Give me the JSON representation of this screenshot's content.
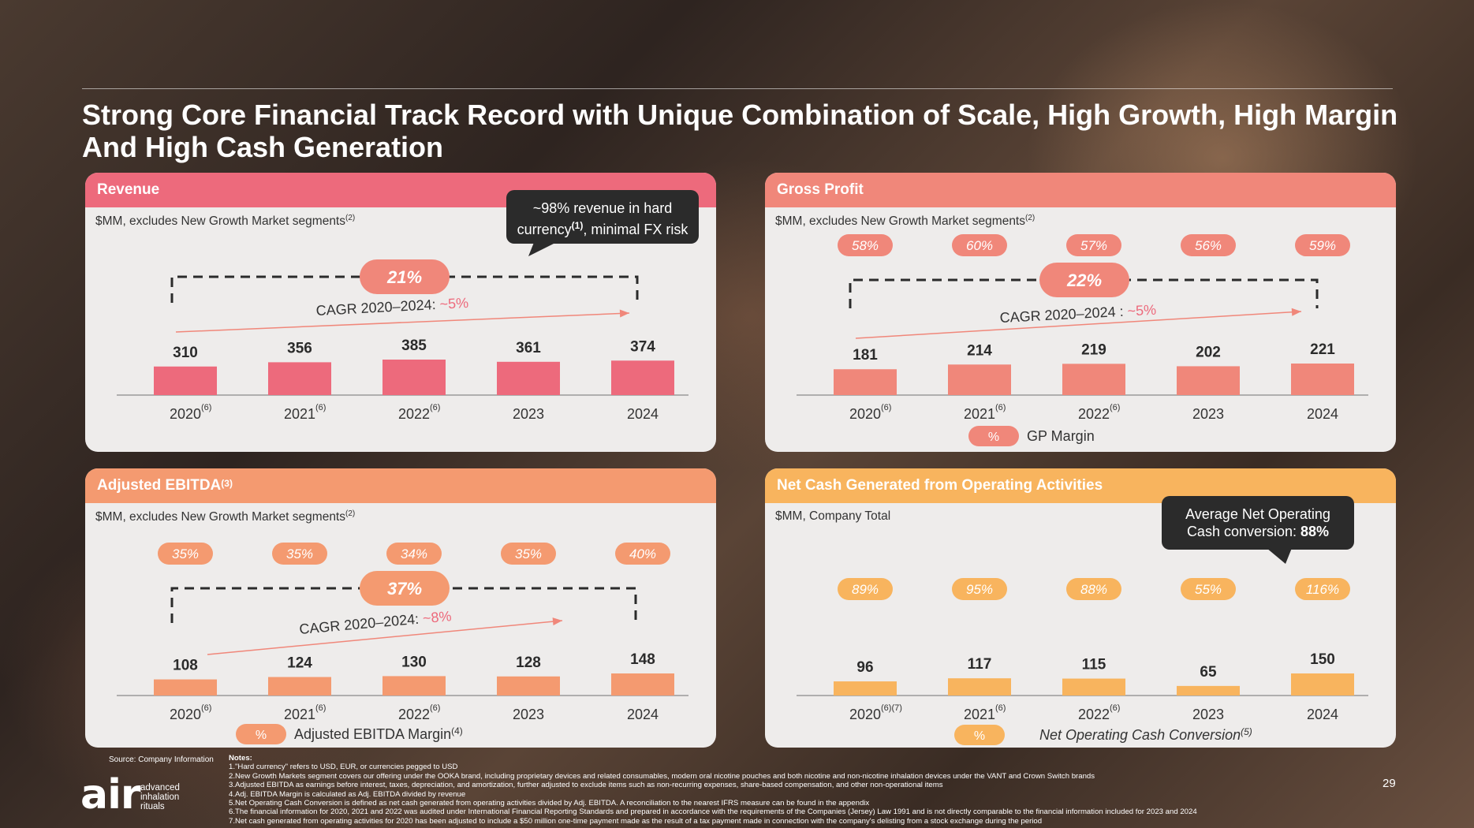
{
  "title": "Strong Core Financial Track Record with Unique Combination of Scale, High Growth, High Margin And High Cash Generation",
  "colors": {
    "red": "#ed6a7c",
    "salmon": "#f0877a",
    "orange": "#f49a70",
    "amber": "#f8b45e",
    "dark": "#2b2b2b",
    "panel_bg": "#eeeceb"
  },
  "panels": {
    "revenue": {
      "header": "Revenue",
      "subtitle": "$MM, excludes New Growth Market segments",
      "subtitle_sup": "(2)",
      "callout_line1": "~98% revenue in hard",
      "callout_line2a": "currency",
      "callout_line2_sup": "(1)",
      "callout_line2b": ", minimal FX risk"
    },
    "gross_profit": {
      "header": "Gross Profit",
      "subtitle": "$MM, excludes New Growth Market segments",
      "subtitle_sup": "(2)"
    },
    "ebitda": {
      "header": "Adjusted EBITDA",
      "header_sup": "(3)",
      "subtitle": "$MM, excludes New Growth Market segments",
      "subtitle_sup": "(2)"
    },
    "net_cash": {
      "header": "Net Cash Generated from Operating Activities",
      "subtitle": "$MM, Company Total",
      "callout_line1": "Average Net Operating",
      "callout_line2": "Cash conversion: ",
      "callout_value": "88%"
    }
  },
  "chart_data": [
    {
      "id": "revenue",
      "type": "bar",
      "categories": [
        "2020",
        "2021",
        "2022",
        "2023",
        "2024"
      ],
      "category_sups": [
        "(6)",
        "(6)",
        "(6)",
        "",
        ""
      ],
      "values": [
        310,
        356,
        385,
        361,
        374
      ],
      "growth_label": "21%",
      "cagr_label": "CAGR 2020–2024: ",
      "cagr_value": "~5%",
      "ylim": [
        0,
        1000
      ]
    },
    {
      "id": "gross_profit",
      "type": "bar",
      "categories": [
        "2020",
        "2021",
        "2022",
        "2023",
        "2024"
      ],
      "category_sups": [
        "(6)",
        "(6)",
        "(6)",
        "",
        ""
      ],
      "values": [
        181,
        214,
        219,
        202,
        221
      ],
      "margins": [
        "58%",
        "60%",
        "57%",
        "56%",
        "59%"
      ],
      "growth_label": "22%",
      "cagr_label": "CAGR 2020–2024 : ",
      "cagr_value": "~5%",
      "legend_symbol": "%",
      "legend_label": "GP Margin",
      "ylim": [
        0,
        600
      ]
    },
    {
      "id": "ebitda",
      "type": "bar",
      "categories": [
        "2020",
        "2021",
        "2022",
        "2023",
        "2024"
      ],
      "category_sups": [
        "(6)",
        "(6)",
        "(6)",
        "",
        ""
      ],
      "values": [
        108,
        124,
        130,
        128,
        148
      ],
      "margins": [
        "35%",
        "35%",
        "34%",
        "35%",
        "40%"
      ],
      "growth_label": "37%",
      "cagr_label": "CAGR 2020–2024: ",
      "cagr_value": "~8%",
      "legend_symbol": "%",
      "legend_label": "Adjusted EBITDA Margin",
      "legend_sup": "(4)",
      "ylim": [
        0,
        600
      ]
    },
    {
      "id": "net_cash",
      "type": "bar",
      "categories": [
        "2020",
        "2021",
        "2022",
        "2023",
        "2024"
      ],
      "category_sups": [
        "(6)(7)",
        "(6)",
        "(6)",
        "",
        ""
      ],
      "values": [
        96,
        117,
        115,
        65,
        150
      ],
      "margins": [
        "89%",
        "95%",
        "88%",
        "55%",
        "116%"
      ],
      "legend_symbol": "%",
      "legend_label": "Net Operating Cash Conversion",
      "legend_sup": "(5)",
      "ylim": [
        0,
        600
      ]
    }
  ],
  "footer": {
    "source": "Source: Company Information",
    "notes_title": "Notes:",
    "notes": [
      "1.\"Hard currency\" refers to USD, EUR, or currencies pegged to USD",
      "2.New Growth Markets segment covers our offering under the OOKA brand, including proprietary devices and related consumables, modern oral nicotine pouches and both nicotine and non-nicotine inhalation devices under the VANT and Crown Switch brands",
      "3.Adjusted EBITDA as earnings before interest, taxes, depreciation, and amortization, further adjusted to exclude items such as non-recurring expenses, share-based compensation, and other non-operational items",
      "4.Adj. EBITDA Margin is calculated as Adj. EBITDA divided by revenue",
      "5.Net Operating Cash Conversion is defined as net cash generated from operating activities divided by Adj. EBITDA. A reconciliation to the nearest IFRS measure can be found in the appendix",
      "6.The financial information for 2020, 2021 and 2022 was audited under International Financial Reporting Standards and prepared in accordance with the requirements of the Companies (Jersey) Law 1991 and is not directly comparable to the financial information included for 2023 and 2024",
      "7.Net cash generated from operating activities for 2020 has been adjusted to include a $50 million one-time payment made as the result of a tax payment made in connection with the company's delisting from a stock exchange during the period"
    ],
    "logo_text": "air",
    "logo_sub": [
      "advanced",
      "inhalation",
      "rituals"
    ],
    "page_number": "29"
  }
}
